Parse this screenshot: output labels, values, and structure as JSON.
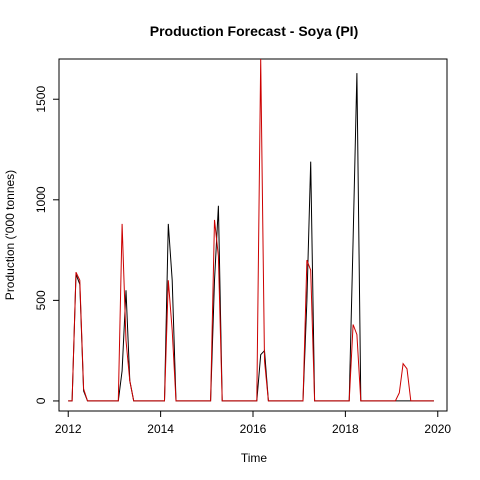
{
  "chart_data": {
    "type": "line",
    "title": "Production Forecast - Soya (PI)",
    "xlabel": "Time",
    "ylabel": "Production ('000 tonnes)",
    "xlim": [
      2011.8,
      2020.2
    ],
    "ylim": [
      -50,
      1700
    ],
    "xticks": [
      2012,
      2014,
      2016,
      2018,
      2020
    ],
    "yticks": [
      0,
      500,
      1000,
      1500
    ],
    "grid": false,
    "legend": "none",
    "series": [
      {
        "color": "#000000",
        "x": [
          2012.0,
          2012.083,
          2012.167,
          2012.25,
          2012.333,
          2012.417,
          2012.5,
          2013.0,
          2013.083,
          2013.167,
          2013.25,
          2013.333,
          2013.417,
          2013.5,
          2014.0,
          2014.083,
          2014.167,
          2014.25,
          2014.333,
          2014.417,
          2014.5,
          2015.0,
          2015.083,
          2015.167,
          2015.25,
          2015.333,
          2015.417,
          2015.5,
          2016.0,
          2016.083,
          2016.167,
          2016.25,
          2016.333,
          2016.417,
          2016.5,
          2017.0,
          2017.083,
          2017.167,
          2017.25,
          2017.333,
          2017.417,
          2017.5,
          2018.0,
          2018.083,
          2018.167,
          2018.25,
          2018.333,
          2018.417,
          2018.5,
          2019.917
        ],
        "y": [
          0,
          0,
          630,
          580,
          50,
          0,
          0,
          0,
          0,
          150,
          550,
          100,
          0,
          0,
          0,
          0,
          880,
          600,
          0,
          0,
          0,
          0,
          0,
          600,
          970,
          0,
          0,
          0,
          0,
          0,
          230,
          250,
          0,
          0,
          0,
          0,
          0,
          500,
          1190,
          0,
          0,
          0,
          0,
          0,
          800,
          1630,
          0,
          0,
          0,
          0
        ]
      },
      {
        "color": "#cc0000",
        "x": [
          2012.0,
          2012.083,
          2012.167,
          2012.25,
          2012.333,
          2012.417,
          2012.5,
          2013.0,
          2013.083,
          2013.167,
          2013.25,
          2013.333,
          2013.417,
          2013.5,
          2014.0,
          2014.083,
          2014.167,
          2014.25,
          2014.333,
          2014.417,
          2014.5,
          2015.0,
          2015.083,
          2015.167,
          2015.25,
          2015.333,
          2015.417,
          2015.5,
          2016.0,
          2016.083,
          2016.167,
          2016.25,
          2016.333,
          2016.417,
          2016.5,
          2017.0,
          2017.083,
          2017.167,
          2017.25,
          2017.333,
          2017.417,
          2017.5,
          2018.0,
          2018.083,
          2018.167,
          2018.25,
          2018.333,
          2018.417,
          2018.5,
          2019.0,
          2019.083,
          2019.167,
          2019.25,
          2019.333,
          2019.417,
          2019.5,
          2019.917
        ],
        "y": [
          0,
          0,
          640,
          600,
          60,
          0,
          0,
          0,
          0,
          880,
          300,
          100,
          0,
          0,
          0,
          0,
          600,
          350,
          0,
          0,
          0,
          0,
          0,
          900,
          720,
          0,
          0,
          0,
          0,
          0,
          1700,
          200,
          0,
          0,
          0,
          0,
          0,
          700,
          650,
          0,
          0,
          0,
          0,
          0,
          380,
          330,
          0,
          0,
          0,
          0,
          0,
          40,
          185,
          160,
          0,
          0,
          0
        ]
      }
    ]
  }
}
